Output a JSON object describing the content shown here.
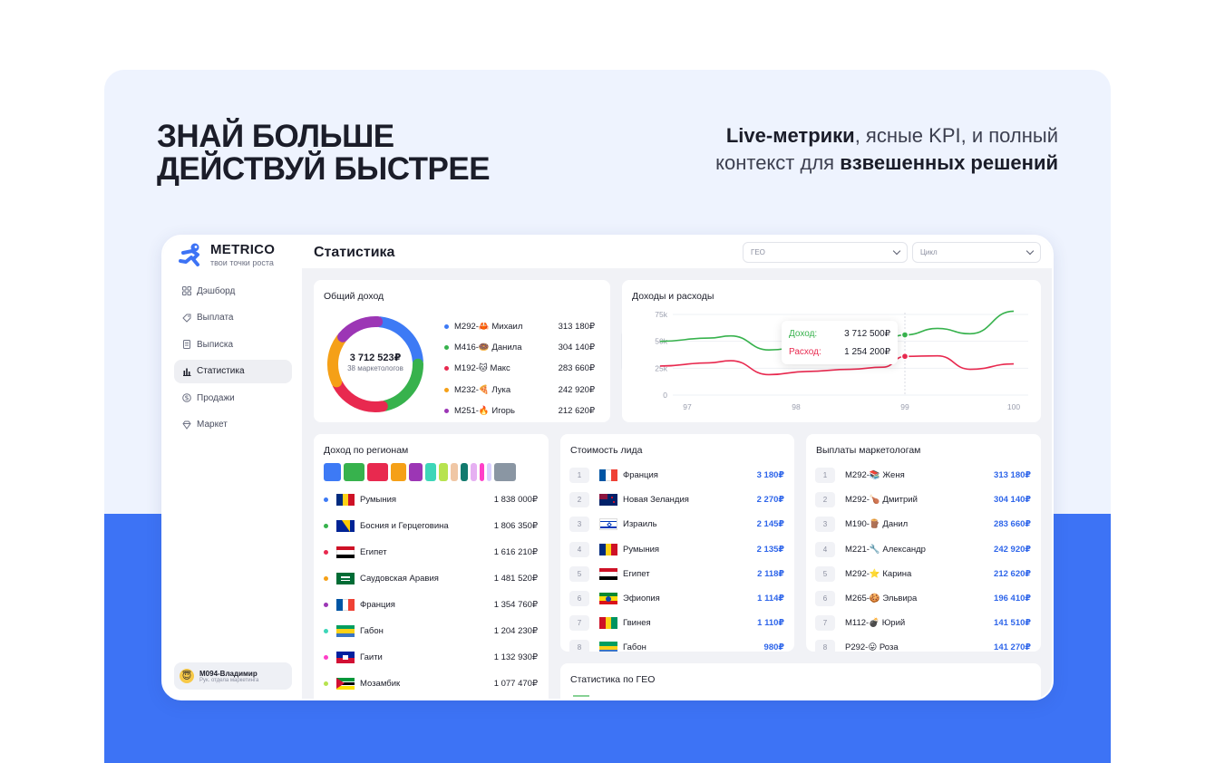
{
  "hero": {
    "headline_1": "Знай больше",
    "headline_2": "действуй быстрее",
    "sub_1_bold": "Live-метрики",
    "sub_1_rest": ", ясные KPI, и полный",
    "sub_2_rest": "контекст для ",
    "sub_2_bold": "взвешенных решений"
  },
  "brand": {
    "name": "METRICO",
    "tagline": "твои точки роста"
  },
  "nav": {
    "items": [
      {
        "label": "Дэшборд",
        "icon": "grid-icon"
      },
      {
        "label": "Выплата",
        "icon": "tag-icon"
      },
      {
        "label": "Выписка",
        "icon": "document-icon"
      },
      {
        "label": "Статистика",
        "icon": "bar-chart-icon",
        "active": true
      },
      {
        "label": "Продажи",
        "icon": "coin-icon"
      },
      {
        "label": "Маркет",
        "icon": "diamond-icon"
      }
    ]
  },
  "user": {
    "avatar": "😇",
    "name": "M094-Владимир",
    "role": "Рук. отдела маркетинга"
  },
  "header": {
    "title": "Статистика",
    "geo_placeholder": "ГЕО",
    "cycle_placeholder": "Цикл"
  },
  "income_card": {
    "title": "Общий доход",
    "total": "3 712 523₽",
    "subtitle": "38 маркетологов",
    "legend": [
      {
        "name": "M292-🦀 Михаил",
        "value": "313 180₽",
        "color": "#3d7af5"
      },
      {
        "name": "M416-🍩 Данила",
        "value": "304 140₽",
        "color": "#37b24d"
      },
      {
        "name": "M192-🐱 Макс",
        "value": "283 660₽",
        "color": "#e8294f"
      },
      {
        "name": "M232-🍕 Лука",
        "value": "242 920₽",
        "color": "#f5a017"
      },
      {
        "name": "M251-🔥 Игорь",
        "value": "212 620₽",
        "color": "#9c36b5"
      }
    ]
  },
  "chart_data": {
    "type": "line",
    "title": "Доходы и расходы",
    "x": [
      97,
      98,
      99,
      100
    ],
    "xticks": [
      "97",
      "98",
      "99",
      "100"
    ],
    "yticks": [
      "0",
      "25k",
      "50k",
      "75k"
    ],
    "ylim": [
      0,
      75000
    ],
    "grid": true,
    "series": [
      {
        "color": "#37b24d",
        "x": [
          96.75,
          97.2,
          97.4,
          97.75,
          98.1,
          98.5,
          98.8,
          99.0,
          99.3,
          99.6,
          100.0
        ],
        "values": [
          50000,
          53000,
          55000,
          42000,
          45000,
          48000,
          52000,
          56000,
          62000,
          57000,
          78000
        ]
      },
      {
        "color": "#e8294f",
        "x": [
          96.75,
          97.2,
          97.4,
          97.75,
          98.1,
          98.5,
          98.8,
          99.0,
          99.3,
          99.6,
          100.0
        ],
        "values": [
          27000,
          30000,
          32000,
          19000,
          22000,
          24000,
          26000,
          36000,
          36500,
          24000,
          29000
        ]
      }
    ],
    "tooltip": {
      "income_label": "Доход:",
      "income_value": "3 712 500₽",
      "expense_label": "Расход:",
      "expense_value": "1 254 200₽",
      "x": 99
    }
  },
  "regions_card": {
    "title": "Доход по регионам",
    "bar_colors": [
      "#3d7af5",
      "#37b24d",
      "#e8294f",
      "#f5a017",
      "#9c36b5",
      "#3dd6b8",
      "#b7e34f",
      "#f0c7a5",
      "#127a6e",
      "#e6b0f2",
      "#ff3fc8",
      "#d9d0ff",
      "#8a96a3"
    ],
    "items": [
      {
        "name": "Румыния",
        "value": "1 838 000₽",
        "color": "#3d7af5",
        "flag": "romania"
      },
      {
        "name": "Босния и Герцеговина",
        "value": "1 806 350₽",
        "color": "#37b24d",
        "flag": "bosnia"
      },
      {
        "name": "Египет",
        "value": "1 616 210₽",
        "color": "#e8294f",
        "flag": "egypt"
      },
      {
        "name": "Саудовская Аравия",
        "value": "1 481 520₽",
        "color": "#f5a017",
        "flag": "saudi"
      },
      {
        "name": "Франция",
        "value": "1 354 760₽",
        "color": "#9c36b5",
        "flag": "france"
      },
      {
        "name": "Габон",
        "value": "1 204 230₽",
        "color": "#3dd6b8",
        "flag": "gabon"
      },
      {
        "name": "Гаити",
        "value": "1 132 930₽",
        "color": "#ff3fc8",
        "flag": "haiti"
      },
      {
        "name": "Мозамбик",
        "value": "1 077 470₽",
        "color": "#b7e34f",
        "flag": "mozambique"
      }
    ]
  },
  "lead_cost_card": {
    "title": "Стоимость лида",
    "items": [
      {
        "n": "1",
        "name": "Франция",
        "value": "3 180₽",
        "flag": "france"
      },
      {
        "n": "2",
        "name": "Новая Зеландия",
        "value": "2 270₽",
        "flag": "nz"
      },
      {
        "n": "3",
        "name": "Израиль",
        "value": "2 145₽",
        "flag": "israel"
      },
      {
        "n": "4",
        "name": "Румыния",
        "value": "2 135₽",
        "flag": "romania"
      },
      {
        "n": "5",
        "name": "Египет",
        "value": "2 118₽",
        "flag": "egypt"
      },
      {
        "n": "6",
        "name": "Эфиопия",
        "value": "1 114₽",
        "flag": "ethiopia"
      },
      {
        "n": "7",
        "name": "Гвинея",
        "value": "1 110₽",
        "flag": "guinea"
      },
      {
        "n": "8",
        "name": "Габон",
        "value": "980₽",
        "flag": "gabon"
      }
    ]
  },
  "payouts_card": {
    "title": "Выплаты маркетологам",
    "items": [
      {
        "n": "1",
        "name": "M292-📚 Женя",
        "value": "313 180₽"
      },
      {
        "n": "2",
        "name": "M292-🍗 Дмитрий",
        "value": "304 140₽"
      },
      {
        "n": "3",
        "name": "M190-🪵 Данил",
        "value": "283 660₽"
      },
      {
        "n": "4",
        "name": "M221-🔧 Александр",
        "value": "242 920₽"
      },
      {
        "n": "5",
        "name": "M292-⭐ Карина",
        "value": "212 620₽"
      },
      {
        "n": "6",
        "name": "M265-🍪 Эльвира",
        "value": "196 410₽"
      },
      {
        "n": "7",
        "name": "M112-💣 Юрий",
        "value": "141 510₽"
      },
      {
        "n": "8",
        "name": "P292-😛 Роза",
        "value": "141 270₽"
      }
    ]
  },
  "geo_stats_card": {
    "title": "Статистика по ГЕО"
  }
}
